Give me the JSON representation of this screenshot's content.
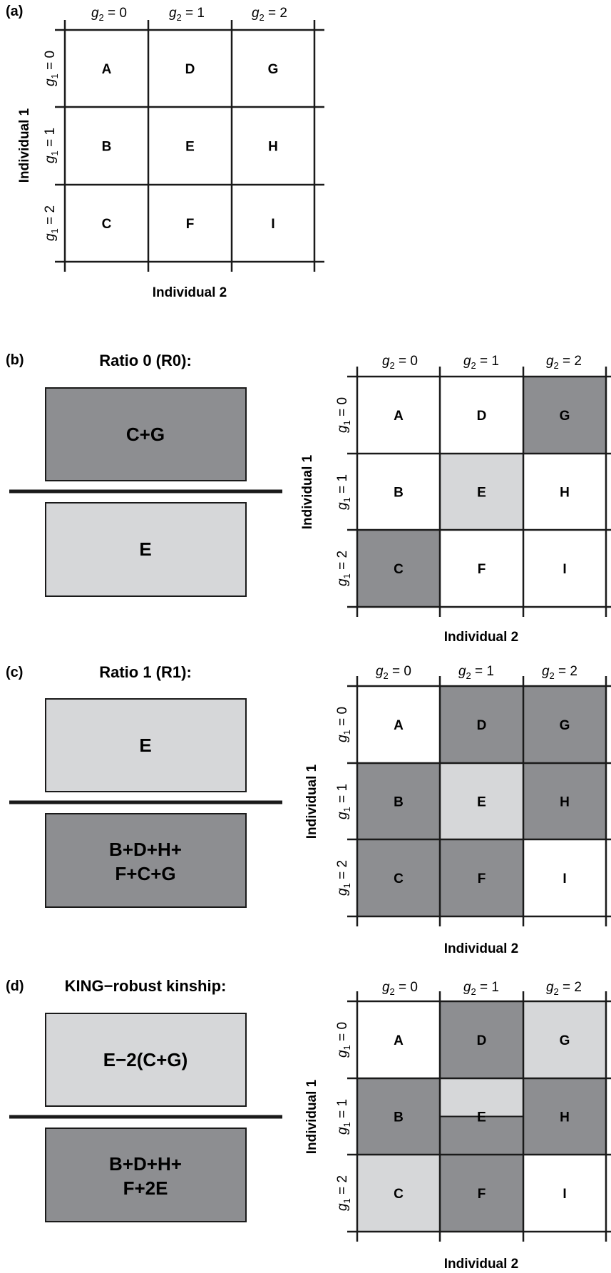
{
  "panels": {
    "a": {
      "label": "(a)",
      "col_headers": [
        "g2 = 0",
        "g2 = 1",
        "g2 = 2"
      ],
      "row_headers": [
        "g1 = 0",
        "g1 = 1",
        "g1 = 2"
      ],
      "row_axis_label": "Individual 1",
      "col_axis_label": "Individual 2",
      "cells": [
        [
          "A",
          "D",
          "G"
        ],
        [
          "B",
          "E",
          "H"
        ],
        [
          "C",
          "F",
          "I"
        ]
      ]
    },
    "b": {
      "label": "(b)",
      "title": "Ratio 0 (R0):",
      "numerator": "C+G",
      "denominator": "E",
      "row_axis_label": "Individual 1",
      "col_axis_label": "Individual 2",
      "cells": [
        [
          "A",
          "D",
          "G"
        ],
        [
          "B",
          "E",
          "H"
        ],
        [
          "C",
          "F",
          "I"
        ]
      ],
      "shading": [
        [
          "white",
          "white",
          "dark"
        ],
        [
          "white",
          "light",
          "white"
        ],
        [
          "dark",
          "white",
          "white"
        ]
      ]
    },
    "c": {
      "label": "(c)",
      "title": "Ratio 1 (R1):",
      "numerator": "E",
      "denominator_line1": "B+D+H+",
      "denominator_line2": "F+C+G",
      "row_axis_label": "Individual 1",
      "col_axis_label": "Individual 2",
      "cells": [
        [
          "A",
          "D",
          "G"
        ],
        [
          "B",
          "E",
          "H"
        ],
        [
          "C",
          "F",
          "I"
        ]
      ],
      "shading": [
        [
          "white",
          "dark",
          "dark"
        ],
        [
          "dark",
          "light",
          "dark"
        ],
        [
          "dark",
          "dark",
          "white"
        ]
      ]
    },
    "d": {
      "label": "(d)",
      "title": "KING−robust kinship:",
      "numerator": "E−2(C+G)",
      "denominator_line1": "B+D+H+",
      "denominator_line2": "F+2E",
      "row_axis_label": "Individual 1",
      "col_axis_label": "Individual 2",
      "cells": [
        [
          "A",
          "D",
          "G"
        ],
        [
          "B",
          "E",
          "H"
        ],
        [
          "C",
          "F",
          "I"
        ]
      ],
      "shading": [
        [
          "white",
          "dark",
          "light"
        ],
        [
          "dark",
          "split",
          "dark"
        ],
        [
          "light",
          "dark",
          "white"
        ]
      ]
    }
  },
  "colors": {
    "dark": "#8d8e91",
    "light": "#d6d7d9",
    "white": "#ffffff",
    "line": "#1a1a1a"
  }
}
